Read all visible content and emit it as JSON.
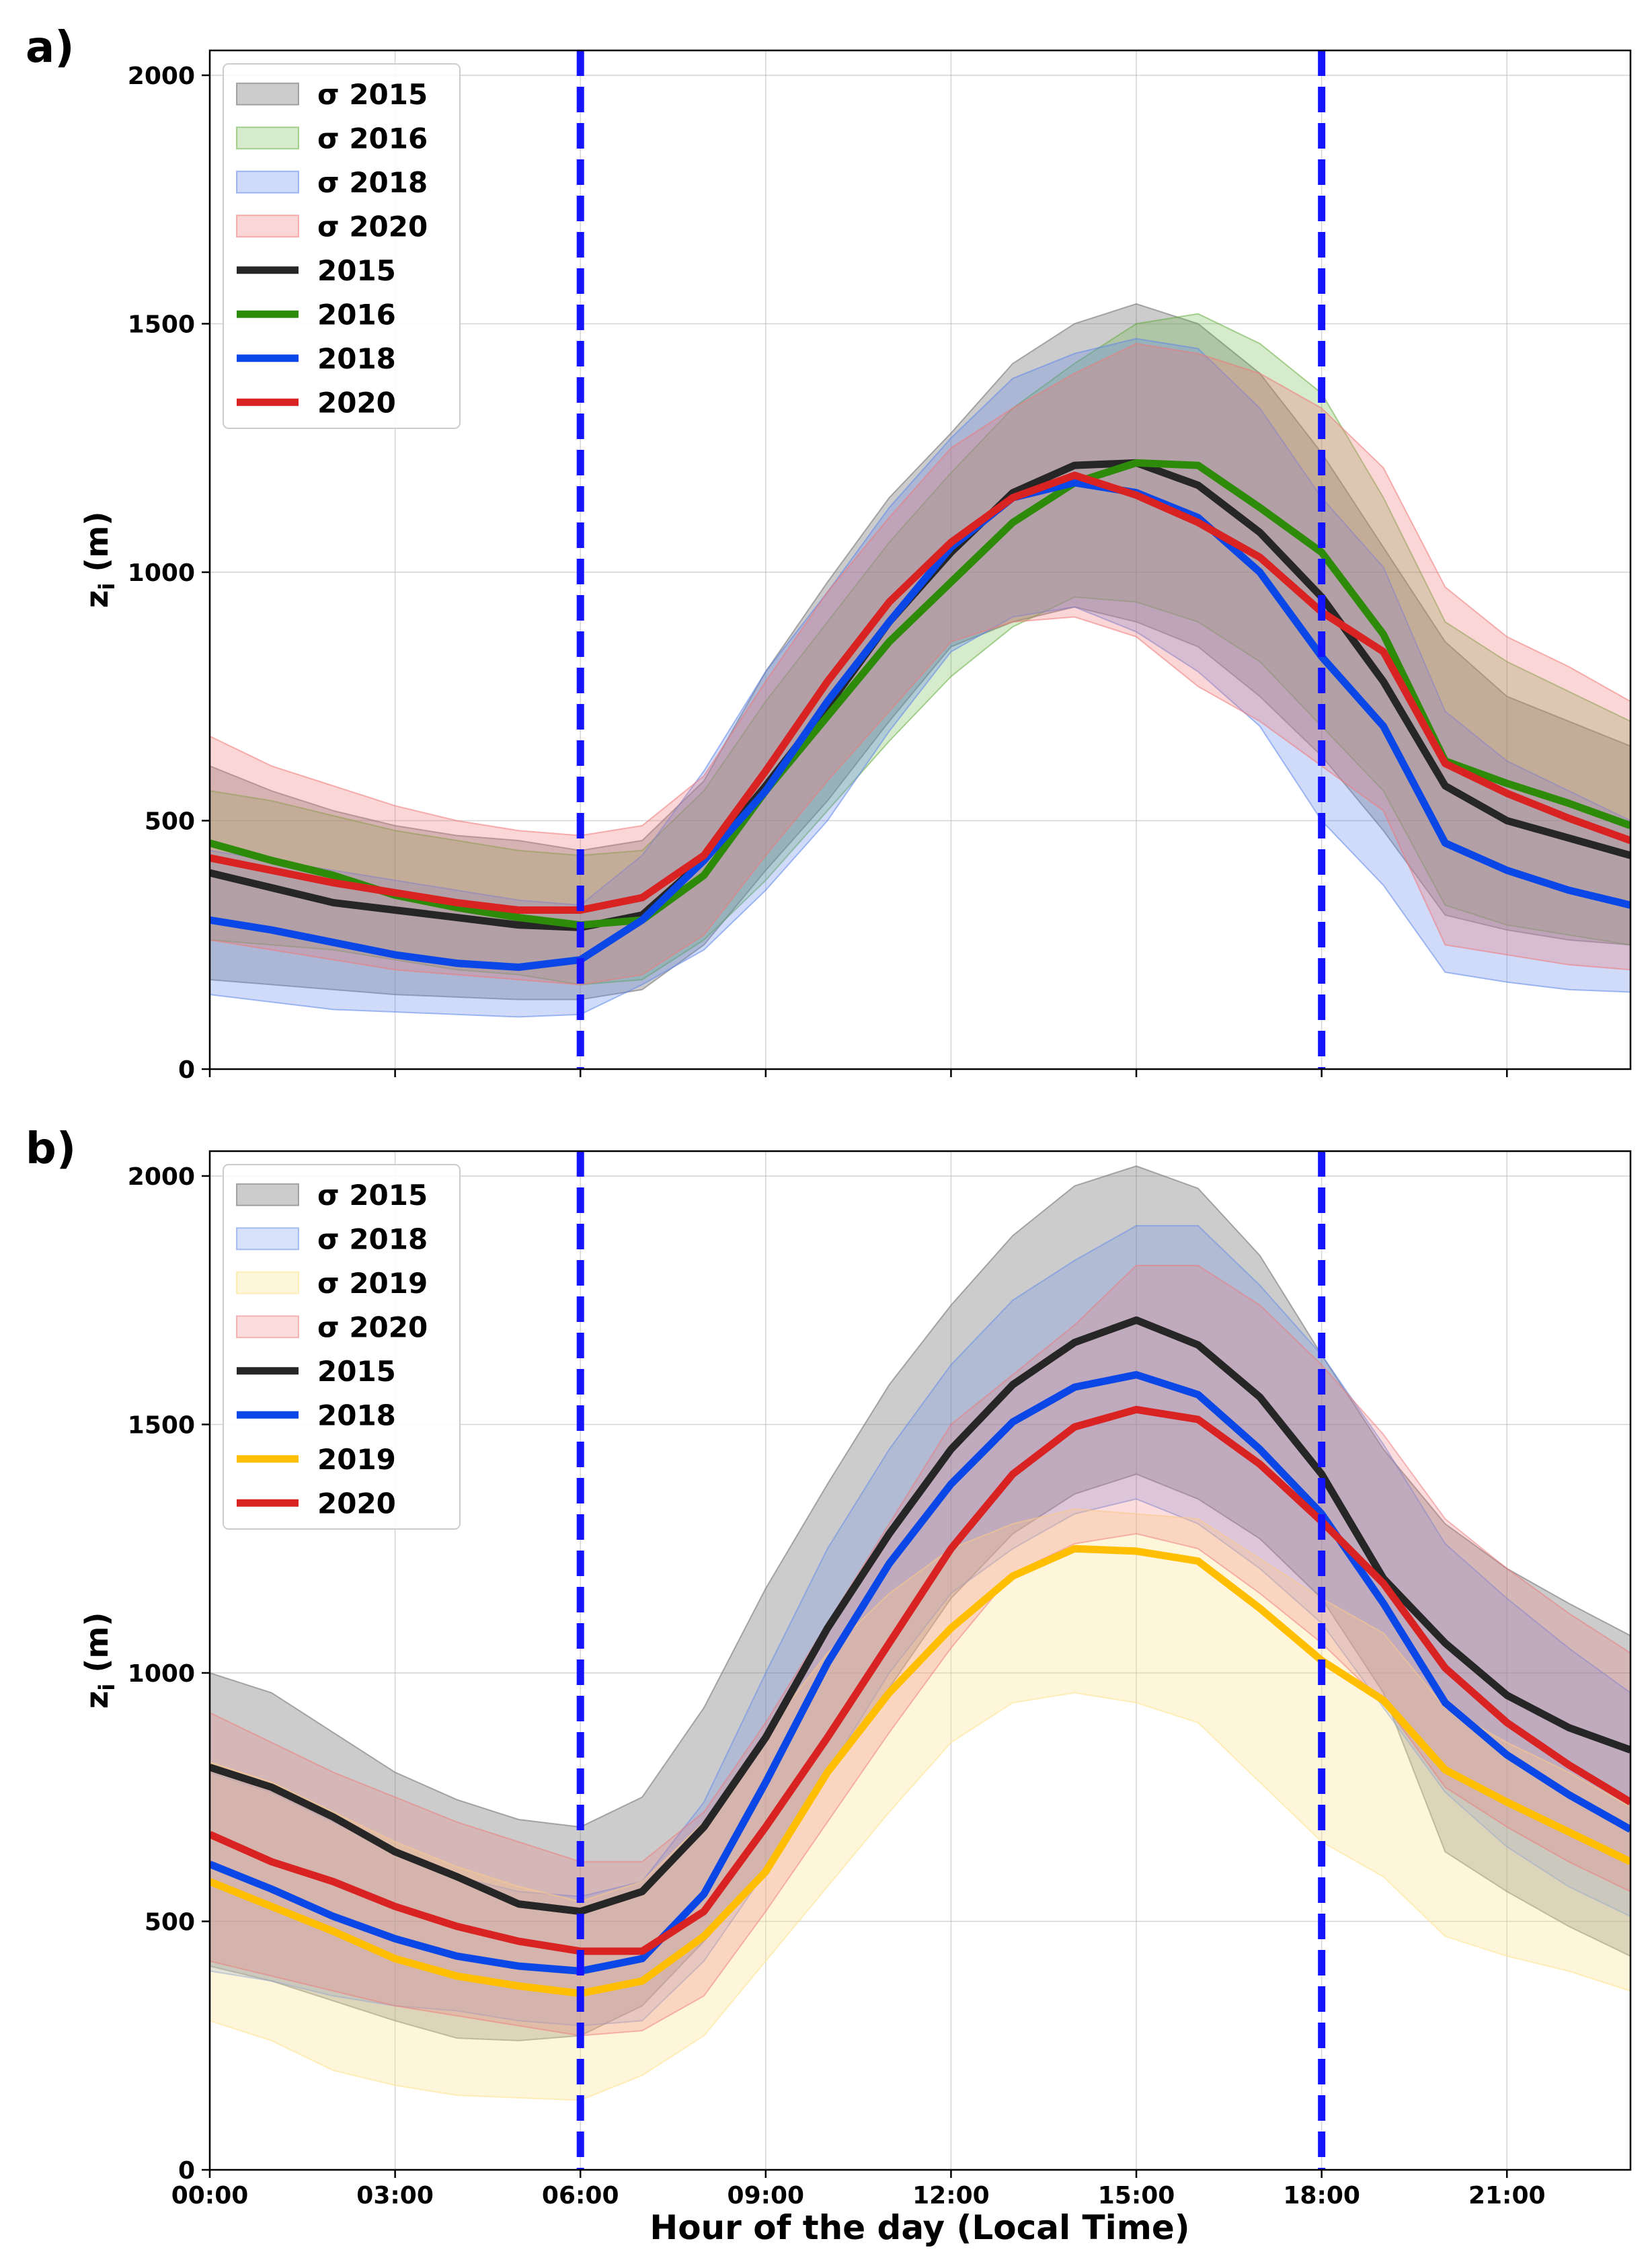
{
  "figure": {
    "xlabel": "Hour of the day (Local Time)",
    "x_ticks": [
      "00:00",
      "03:00",
      "06:00",
      "09:00",
      "12:00",
      "15:00",
      "18:00",
      "21:00"
    ],
    "x_tick_hours": [
      0,
      3,
      6,
      9,
      12,
      15,
      18,
      21
    ],
    "x_range": [
      0,
      23
    ],
    "vlines": [
      6,
      18
    ],
    "vline_color": "#1414ff"
  },
  "chart_data": [
    {
      "type": "line",
      "panel_label": "a)",
      "ylabel_main": "z",
      "ylabel_sub": "i",
      "ylabel_unit": " (m)",
      "ylim": [
        0,
        2050
      ],
      "y_ticks": [
        0,
        500,
        1000,
        1500,
        2000
      ],
      "x": [
        0,
        1,
        2,
        3,
        4,
        5,
        6,
        7,
        8,
        9,
        10,
        11,
        12,
        13,
        14,
        15,
        16,
        17,
        18,
        19,
        20,
        21,
        22,
        23
      ],
      "legend": [
        "σ 2015",
        "σ 2016",
        "σ 2018",
        "σ 2020",
        "2015",
        "2016",
        "2018",
        "2020"
      ],
      "series": [
        {
          "name": "2015",
          "color": "#262626",
          "fill": "#7f7f7f",
          "fill_opacity": 0.4,
          "mean": [
            395,
            365,
            335,
            320,
            305,
            290,
            285,
            310,
            420,
            570,
            730,
            900,
            1040,
            1160,
            1215,
            1220,
            1175,
            1080,
            950,
            780,
            570,
            500,
            465,
            430
          ],
          "upper": [
            610,
            560,
            520,
            490,
            470,
            460,
            440,
            460,
            580,
            800,
            980,
            1150,
            1280,
            1420,
            1500,
            1540,
            1500,
            1400,
            1240,
            1050,
            860,
            750,
            700,
            650
          ],
          "lower": [
            180,
            170,
            160,
            150,
            145,
            140,
            140,
            160,
            250,
            400,
            540,
            700,
            850,
            900,
            930,
            900,
            850,
            750,
            630,
            480,
            310,
            280,
            260,
            250
          ]
        },
        {
          "name": "2016",
          "color": "#2e8b0a",
          "fill": "#5aaa32",
          "fill_opacity": 0.25,
          "mean": [
            455,
            420,
            390,
            350,
            325,
            305,
            290,
            300,
            390,
            560,
            710,
            860,
            980,
            1100,
            1180,
            1220,
            1215,
            1130,
            1040,
            875,
            620,
            575,
            535,
            490
          ],
          "upper": [
            560,
            540,
            510,
            480,
            460,
            440,
            430,
            440,
            560,
            740,
            900,
            1060,
            1200,
            1330,
            1420,
            1500,
            1520,
            1460,
            1360,
            1150,
            900,
            820,
            760,
            700
          ],
          "lower": [
            260,
            250,
            240,
            220,
            200,
            190,
            170,
            180,
            260,
            380,
            520,
            660,
            790,
            890,
            950,
            940,
            900,
            820,
            690,
            560,
            330,
            290,
            270,
            250
          ]
        },
        {
          "name": "2018",
          "color": "#0b46e6",
          "fill": "#5f87ea",
          "fill_opacity": 0.3,
          "mean": [
            300,
            280,
            255,
            230,
            213,
            205,
            220,
            300,
            420,
            560,
            740,
            900,
            1050,
            1150,
            1180,
            1160,
            1110,
            1000,
            830,
            690,
            455,
            400,
            360,
            330
          ],
          "upper": [
            440,
            420,
            400,
            380,
            360,
            340,
            330,
            430,
            600,
            800,
            960,
            1130,
            1270,
            1390,
            1440,
            1470,
            1450,
            1330,
            1150,
            1010,
            720,
            620,
            560,
            500
          ],
          "lower": [
            150,
            135,
            120,
            115,
            110,
            105,
            110,
            170,
            240,
            360,
            500,
            680,
            840,
            910,
            930,
            880,
            800,
            690,
            500,
            370,
            195,
            175,
            160,
            155
          ]
        },
        {
          "name": "2020",
          "color": "#d92323",
          "fill": "#f07878",
          "fill_opacity": 0.3,
          "mean": [
            425,
            400,
            375,
            355,
            335,
            320,
            320,
            345,
            430,
            600,
            780,
            940,
            1060,
            1150,
            1195,
            1155,
            1100,
            1030,
            920,
            840,
            615,
            555,
            505,
            460
          ],
          "upper": [
            670,
            610,
            570,
            530,
            500,
            480,
            470,
            490,
            590,
            780,
            960,
            1110,
            1250,
            1330,
            1400,
            1460,
            1440,
            1400,
            1330,
            1210,
            970,
            870,
            810,
            740
          ],
          "lower": [
            260,
            240,
            220,
            200,
            190,
            180,
            170,
            190,
            270,
            430,
            580,
            720,
            860,
            900,
            910,
            870,
            770,
            700,
            610,
            520,
            250,
            230,
            210,
            200
          ]
        }
      ]
    },
    {
      "type": "line",
      "panel_label": "b)",
      "ylabel_main": "z",
      "ylabel_sub": "i",
      "ylabel_unit": " (m)",
      "ylim": [
        0,
        2050
      ],
      "y_ticks": [
        0,
        500,
        1000,
        1500,
        2000
      ],
      "x": [
        0,
        1,
        2,
        3,
        4,
        5,
        6,
        7,
        8,
        9,
        10,
        11,
        12,
        13,
        14,
        15,
        16,
        17,
        18,
        19,
        20,
        21,
        22,
        23
      ],
      "legend": [
        "σ 2015",
        "σ 2018",
        "σ 2019",
        "σ 2020",
        "2015",
        "2018",
        "2019",
        "2020"
      ],
      "series": [
        {
          "name": "2015",
          "color": "#262626",
          "fill": "#7f7f7f",
          "fill_opacity": 0.4,
          "mean": [
            810,
            770,
            710,
            640,
            590,
            535,
            520,
            560,
            690,
            870,
            1090,
            1280,
            1450,
            1580,
            1665,
            1710,
            1660,
            1555,
            1400,
            1190,
            1060,
            955,
            890,
            845
          ],
          "upper": [
            1000,
            960,
            880,
            800,
            745,
            705,
            690,
            750,
            930,
            1170,
            1380,
            1580,
            1740,
            1880,
            1980,
            2020,
            1975,
            1840,
            1640,
            1450,
            1300,
            1210,
            1140,
            1075
          ],
          "lower": [
            410,
            380,
            340,
            300,
            265,
            260,
            270,
            330,
            460,
            600,
            790,
            970,
            1150,
            1280,
            1360,
            1400,
            1350,
            1270,
            1150,
            960,
            640,
            560,
            490,
            430
          ]
        },
        {
          "name": "2018",
          "color": "#0b46e6",
          "fill": "#5f87ea",
          "fill_opacity": 0.25,
          "mean": [
            615,
            565,
            510,
            465,
            430,
            410,
            400,
            425,
            555,
            780,
            1020,
            1220,
            1380,
            1505,
            1575,
            1600,
            1560,
            1450,
            1320,
            1140,
            940,
            835,
            755,
            685
          ],
          "upper": [
            800,
            760,
            700,
            640,
            590,
            560,
            550,
            580,
            740,
            1000,
            1250,
            1450,
            1620,
            1750,
            1830,
            1900,
            1900,
            1780,
            1640,
            1460,
            1260,
            1150,
            1050,
            960
          ],
          "lower": [
            400,
            380,
            350,
            330,
            320,
            300,
            290,
            300,
            420,
            600,
            800,
            1000,
            1160,
            1250,
            1320,
            1350,
            1300,
            1210,
            1100,
            930,
            760,
            650,
            570,
            510
          ]
        },
        {
          "name": "2019",
          "color": "#ffbf00",
          "fill": "#fde494",
          "fill_opacity": 0.35,
          "mean": [
            580,
            530,
            480,
            425,
            390,
            370,
            355,
            380,
            470,
            600,
            800,
            960,
            1090,
            1195,
            1250,
            1245,
            1225,
            1130,
            1025,
            945,
            805,
            740,
            680,
            620
          ],
          "upper": [
            820,
            780,
            720,
            660,
            610,
            570,
            540,
            580,
            700,
            880,
            1040,
            1160,
            1250,
            1300,
            1330,
            1320,
            1310,
            1230,
            1150,
            1080,
            930,
            860,
            800,
            730
          ],
          "lower": [
            300,
            260,
            200,
            170,
            150,
            145,
            140,
            190,
            270,
            420,
            570,
            720,
            860,
            940,
            960,
            940,
            900,
            780,
            660,
            590,
            470,
            430,
            400,
            360
          ]
        },
        {
          "name": "2020",
          "color": "#d92323",
          "fill": "#f07878",
          "fill_opacity": 0.25,
          "mean": [
            675,
            620,
            580,
            530,
            490,
            460,
            440,
            440,
            520,
            690,
            870,
            1060,
            1250,
            1400,
            1495,
            1530,
            1510,
            1420,
            1305,
            1180,
            1010,
            900,
            815,
            740
          ],
          "upper": [
            920,
            860,
            800,
            750,
            700,
            660,
            620,
            620,
            720,
            900,
            1100,
            1300,
            1500,
            1600,
            1700,
            1820,
            1820,
            1740,
            1620,
            1480,
            1310,
            1210,
            1120,
            1040
          ],
          "lower": [
            420,
            390,
            360,
            330,
            310,
            290,
            270,
            280,
            350,
            520,
            700,
            880,
            1050,
            1200,
            1260,
            1280,
            1250,
            1160,
            1060,
            940,
            770,
            690,
            620,
            560
          ]
        }
      ]
    }
  ]
}
